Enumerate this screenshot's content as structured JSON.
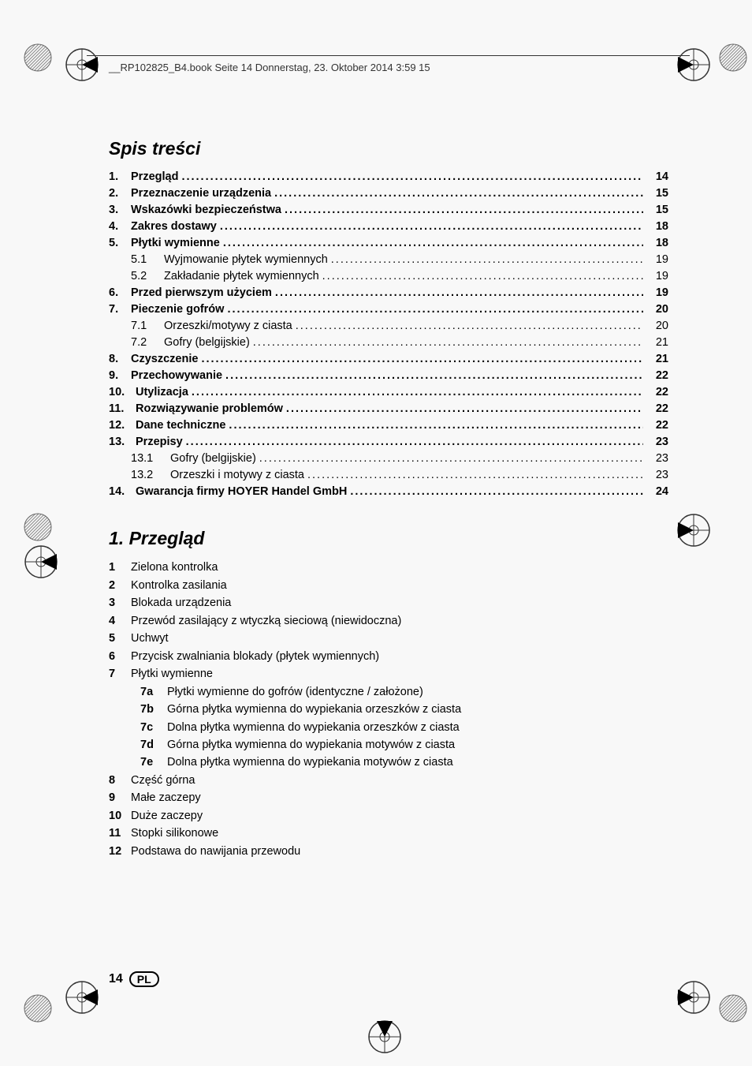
{
  "header_text": "__RP102825_B4.book  Seite 14  Donnerstag, 23. Oktober 2014  3:59 15",
  "toc_title": "Spis treści",
  "toc": [
    {
      "num": "1.",
      "label": "Przegląd",
      "page": "14",
      "bold": true
    },
    {
      "num": "2.",
      "label": "Przeznaczenie urządzenia",
      "page": "15",
      "bold": true
    },
    {
      "num": "3.",
      "label": "Wskazówki bezpieczeństwa",
      "page": "15",
      "bold": true
    },
    {
      "num": "4.",
      "label": "Zakres dostawy",
      "page": "18",
      "bold": true
    },
    {
      "num": "5.",
      "label": "Płytki wymienne",
      "page": "18",
      "bold": true
    },
    {
      "num": "5.1",
      "label": "Wyjmowanie płytek wymiennych",
      "page": "19",
      "sub": true
    },
    {
      "num": "5.2",
      "label": "Zakładanie płytek wymiennych",
      "page": "19",
      "sub": true
    },
    {
      "num": "6.",
      "label": "Przed pierwszym użyciem",
      "page": "19",
      "bold": true
    },
    {
      "num": "7.",
      "label": "Pieczenie gofrów",
      "page": "20",
      "bold": true
    },
    {
      "num": "7.1",
      "label": "Orzeszki/motywy z ciasta",
      "page": "20",
      "sub": true
    },
    {
      "num": "7.2",
      "label": "Gofry (belgijskie)",
      "page": "21",
      "sub": true
    },
    {
      "num": "8.",
      "label": "Czyszczenie",
      "page": "21",
      "bold": true
    },
    {
      "num": "9.",
      "label": "Przechowywanie",
      "page": "22",
      "bold": true
    },
    {
      "num": "10.",
      "label": "Utylizacja",
      "page": "22",
      "bold": true,
      "tight": true
    },
    {
      "num": "11.",
      "label": "Rozwiązywanie problemów",
      "page": "22",
      "bold": true,
      "tight": true
    },
    {
      "num": "12.",
      "label": "Dane techniczne",
      "page": "22",
      "bold": true,
      "tight": true
    },
    {
      "num": "13.",
      "label": "Przepisy",
      "page": "23",
      "bold": true,
      "tight": true
    },
    {
      "num": "13.1",
      "label": "Gofry (belgijskie)",
      "page": "23",
      "sub2": true
    },
    {
      "num": "13.2",
      "label": "Orzeszki i motywy z ciasta",
      "page": "23",
      "sub2": true
    },
    {
      "num": "14.",
      "label": "Gwarancja firmy HOYER Handel GmbH",
      "page": "24",
      "bold": true,
      "tight": true
    }
  ],
  "section1_title": "1.   Przegląd",
  "legend": [
    {
      "num": "1",
      "text": "Zielona kontrolka"
    },
    {
      "num": "2",
      "text": "Kontrolka zasilania"
    },
    {
      "num": "3",
      "text": "Blokada urządzenia"
    },
    {
      "num": "4",
      "text": "Przewód zasilający z wtyczką sieciową (niewidoczna)"
    },
    {
      "num": "5",
      "text": "Uchwyt"
    },
    {
      "num": "6",
      "text": "Przycisk zwalniania blokady (płytek wymiennych)"
    },
    {
      "num": "7",
      "text": "Płytki wymienne"
    }
  ],
  "legend_sub": [
    {
      "num": "7a",
      "text": "Płytki wymienne do gofrów (identyczne / założone)"
    },
    {
      "num": "7b",
      "text": "Górna płytka wymienna do wypiekania orzeszków z ciasta"
    },
    {
      "num": "7c",
      "text": "Dolna płytka wymienna do wypiekania orzeszków z ciasta"
    },
    {
      "num": "7d",
      "text": "Górna płytka wymienna do wypiekania motywów z ciasta"
    },
    {
      "num": "7e",
      "text": "Dolna płytka wymienna do wypiekania motywów z ciasta"
    }
  ],
  "legend2": [
    {
      "num": "8",
      "text": "Część górna"
    },
    {
      "num": "9",
      "text": "Małe zaczepy"
    },
    {
      "num": "10",
      "text": "Duże zaczepy"
    },
    {
      "num": "11",
      "text": "Stopki silikonowe"
    },
    {
      "num": "12",
      "text": "Podstawa do nawijania przewodu"
    }
  ],
  "footer_page": "14",
  "footer_lang": "PL",
  "colors": {
    "arrow_fill": "#000000",
    "reg_stroke": "#333333",
    "hatch": "#888888"
  }
}
